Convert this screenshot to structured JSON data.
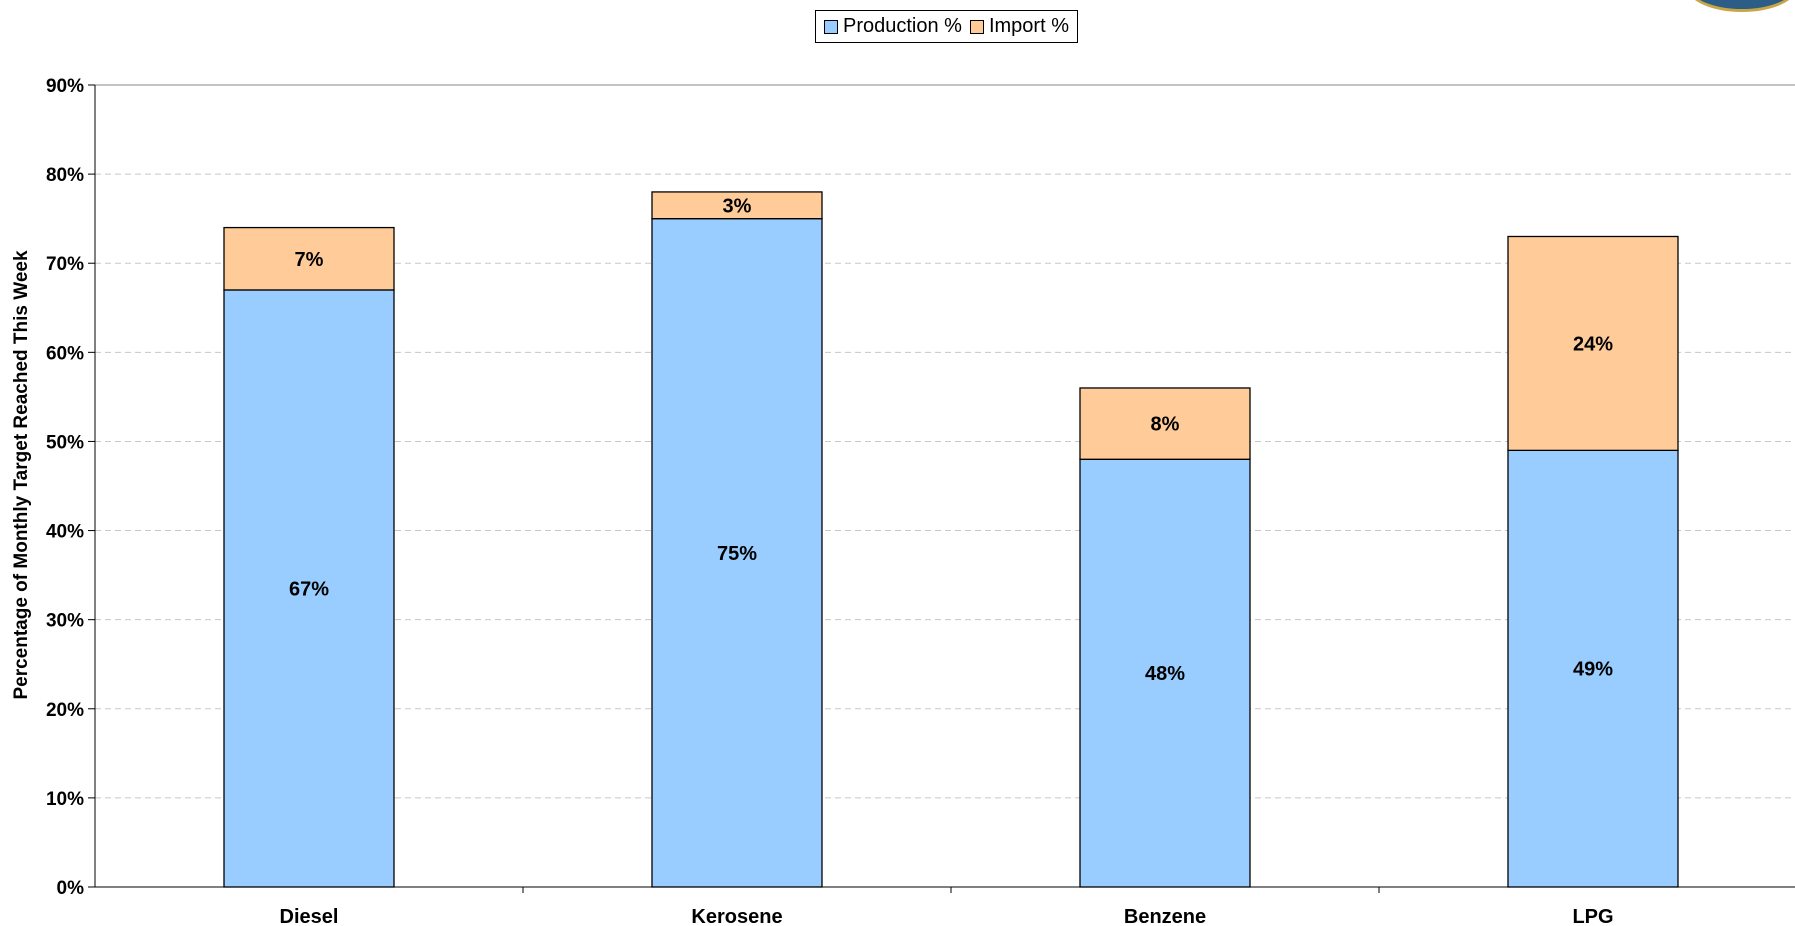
{
  "chart_data": {
    "type": "bar",
    "stacked": true,
    "categories": [
      "Diesel",
      "Kerosene",
      "Benzene",
      "LPG"
    ],
    "series": [
      {
        "name": "Production %",
        "values": [
          67,
          75,
          48,
          49
        ],
        "labels": [
          "67%",
          "75%",
          "48%",
          "49%"
        ],
        "color": "#99ccff"
      },
      {
        "name": "Import %",
        "values": [
          7,
          3,
          8,
          24
        ],
        "labels": [
          "7%",
          "3%",
          "8%",
          "24%"
        ],
        "color": "#ffcc99"
      }
    ],
    "ylabel": "Percentage of Monthly Target Reached This Week",
    "ylim": [
      0,
      90
    ],
    "yticks": [
      "0%",
      "10%",
      "20%",
      "30%",
      "40%",
      "50%",
      "60%",
      "70%",
      "80%",
      "90%"
    ],
    "grid": true,
    "legend_position": "top-center"
  },
  "logo": {
    "name": "seal-logo"
  }
}
